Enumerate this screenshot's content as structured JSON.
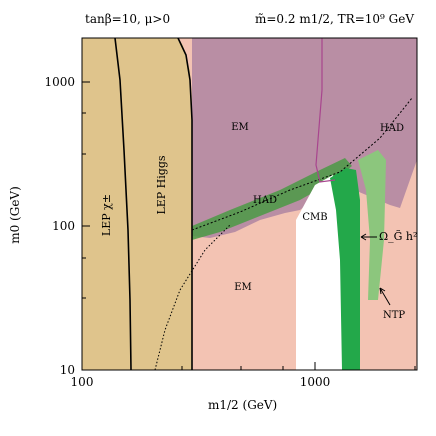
{
  "header": {
    "left": "tanβ=10,  μ>0",
    "right": "m̃=0.2 m1/2,  TR=10⁹ GeV"
  },
  "chart_data": {
    "type": "area",
    "xlabel": "m1/2 (GeV)",
    "ylabel": "m0 (GeV)",
    "xscale": "log",
    "yscale": "log",
    "xlim": [
      100,
      3000
    ],
    "ylim": [
      10,
      2000
    ],
    "x_ticks": [
      "100",
      "1000"
    ],
    "y_ticks": [
      "10",
      "100",
      "1000"
    ],
    "colors": {
      "lep_region": "#dfc48c",
      "em_upper": "#b98ea4",
      "em_lower": "#f3c3b3",
      "relic_dark": "#23a84a",
      "relic_light": "#8cc67d",
      "cmb": "#ffffff",
      "had_boundary": "#000000",
      "contour_magenta": "#a8458e"
    },
    "regions": [
      {
        "label": "LEP χ±",
        "x_max": 160
      },
      {
        "label": "LEP Higgs",
        "x_max": 310
      },
      {
        "label": "EM",
        "note": "upper region above HAD boundary"
      },
      {
        "label": "HAD"
      },
      {
        "label": "HAD",
        "note": "upper right"
      },
      {
        "label": "EM",
        "note": "lower region"
      },
      {
        "label": "CMB"
      },
      {
        "label": "Ω_G̃ h²"
      },
      {
        "label": "NTP"
      }
    ],
    "had_boundary": {
      "x": [
        310,
        1100,
        1700,
        2700
      ],
      "y": [
        80,
        220,
        330,
        700
      ]
    },
    "relic_band": {
      "x": [
        1450,
        1650
      ],
      "y": [
        10,
        330
      ]
    },
    "ntp_band": {
      "x": [
        1800,
        2250
      ],
      "y": [
        30,
        330
      ]
    }
  }
}
